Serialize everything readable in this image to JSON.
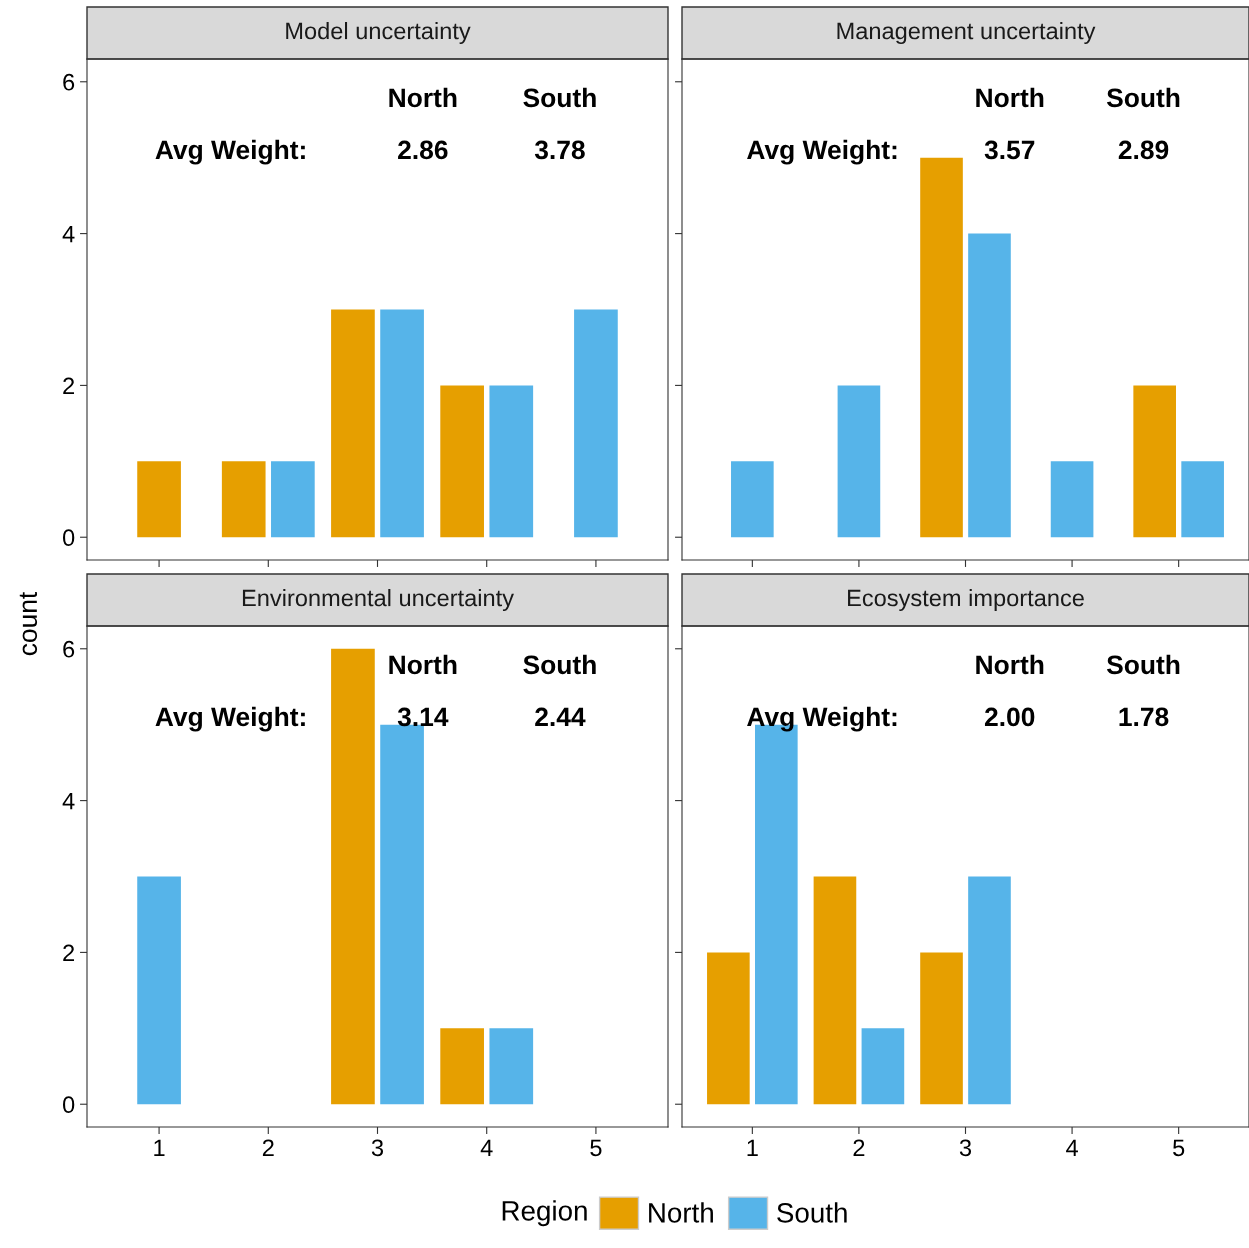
{
  "chart_data": [
    {
      "type": "bar",
      "title": "Model uncertainty",
      "ylabel": "count",
      "categories": [
        "1",
        "2",
        "3",
        "4",
        "5"
      ],
      "ylim": [
        -0.3,
        6.3
      ],
      "yticks": [
        0,
        2,
        4,
        6
      ],
      "grid": false,
      "tick_labels": "y",
      "legend": "bottom",
      "legend_title": "Region",
      "series": [
        {
          "name": "North",
          "color": "#e69f00",
          "values": [
            1,
            1,
            3,
            2,
            null
          ]
        },
        {
          "name": "South",
          "color": "#56b4e9",
          "values": [
            null,
            1,
            3,
            2,
            3
          ]
        }
      ],
      "annotations": [
        "North",
        "South",
        "Avg Weight:",
        "2.86",
        "3.78"
      ]
    },
    {
      "type": "bar",
      "title": "Management uncertainty",
      "categories": [
        "1",
        "2",
        "3",
        "4",
        "5"
      ],
      "ylim": [
        -0.3,
        6.3
      ],
      "yticks": [
        0,
        2,
        4,
        6
      ],
      "grid": false,
      "tick_labels": false,
      "series": [
        {
          "color": "#e69f00",
          "values": [
            null,
            null,
            5,
            null,
            2
          ]
        },
        {
          "color": "#56b4e9",
          "values": [
            1,
            2,
            4,
            1,
            1
          ]
        }
      ],
      "annotations": [
        "North",
        "South",
        "Avg Weight:",
        "3.57",
        "2.89"
      ]
    },
    {
      "type": "bar",
      "title": "Environmental uncertainty",
      "categories": [
        "1",
        "2",
        "3",
        "4",
        "5"
      ],
      "ylim": [
        -0.3,
        6.3
      ],
      "yticks": [
        0,
        2,
        4,
        6
      ],
      "grid": false,
      "series": [
        {
          "color": "#e69f00",
          "values": [
            null,
            null,
            6,
            1,
            null
          ]
        },
        {
          "color": "#56b4e9",
          "values": [
            3,
            null,
            5,
            1,
            null
          ]
        }
      ],
      "annotations": [
        "North",
        "South",
        "Avg Weight:",
        "3.14",
        "2.44"
      ]
    },
    {
      "type": "bar",
      "title": "Ecosystem importance",
      "categories": [
        "1",
        "2",
        "3",
        "4",
        "5"
      ],
      "ylim": [
        -0.3,
        6.3
      ],
      "yticks": [
        0,
        2,
        4,
        6
      ],
      "grid": false,
      "tick_labels": "x",
      "series": [
        {
          "color": "#e69f00",
          "values": [
            2,
            3,
            2,
            null,
            null
          ]
        },
        {
          "color": "#56b4e9",
          "values": [
            5,
            1,
            3,
            null,
            null
          ]
        }
      ],
      "annotations": [
        "North",
        "South",
        "Avg Weight:",
        "2.00",
        "1.78"
      ]
    }
  ]
}
